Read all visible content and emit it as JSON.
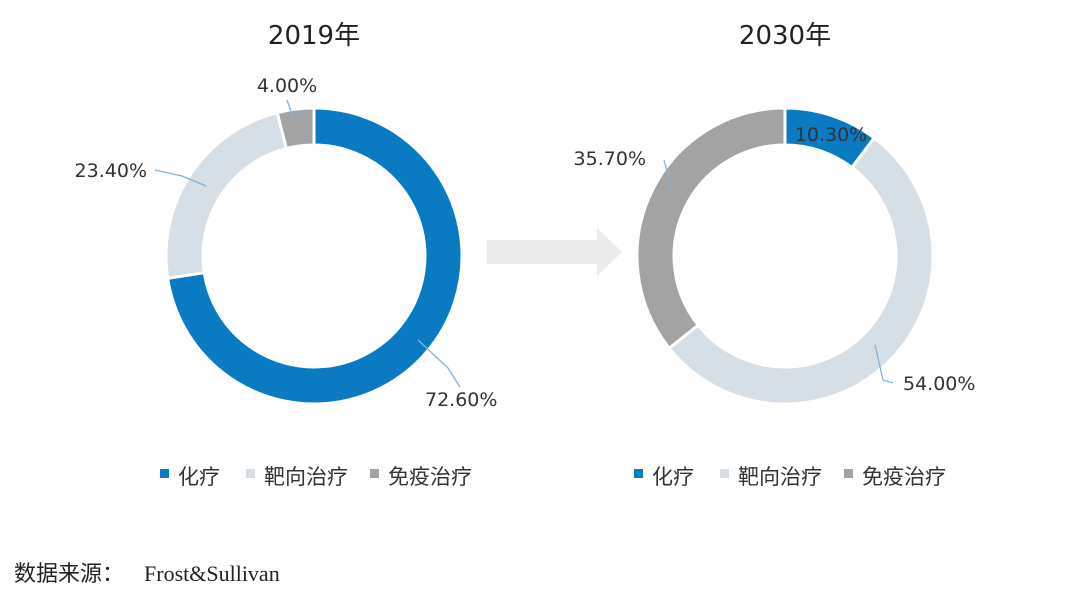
{
  "source": {
    "label": "数据来源：",
    "value": "Frost&Sullivan"
  },
  "colors": {
    "化疗": "#0a7bc2",
    "靶向治疗": "#d6dee6",
    "免疫治疗": "#a3a3a3",
    "leader": "#7fb3dc",
    "arrow": "#ebebeb"
  },
  "chart_data": [
    {
      "type": "pie",
      "title": "2019年",
      "categories": [
        "化疗",
        "靶向治疗",
        "免疫治疗"
      ],
      "values": [
        72.6,
        23.4,
        4.0
      ],
      "labels": [
        "72.60%",
        "23.40%",
        "4.00%"
      ],
      "legend": [
        "化疗",
        "靶向治疗",
        "免疫治疗"
      ],
      "legend_position": "bottom"
    },
    {
      "type": "pie",
      "title": "2030年",
      "categories": [
        "化疗",
        "靶向治疗",
        "免疫治疗"
      ],
      "values": [
        10.3,
        54.0,
        35.7
      ],
      "labels": [
        "10.30%",
        "54.00%",
        "35.70%"
      ],
      "legend": [
        "化疗",
        "靶向治疗",
        "免疫治疗"
      ],
      "legend_position": "bottom"
    }
  ]
}
